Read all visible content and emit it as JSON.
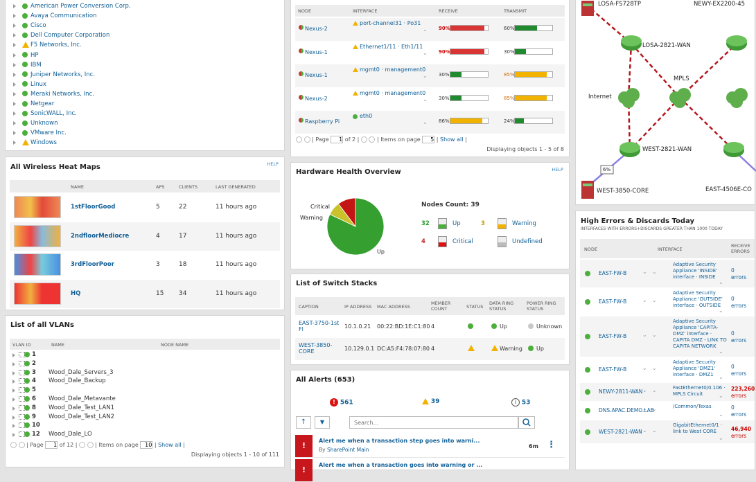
{
  "vendors": {
    "items": [
      {
        "label": "American Power Conversion Corp.",
        "status": "up"
      },
      {
        "label": "Avaya Communication",
        "status": "up"
      },
      {
        "label": "Cisco",
        "status": "up"
      },
      {
        "label": "Dell Computer Corporation",
        "status": "up"
      },
      {
        "label": "F5 Networks, Inc.",
        "status": "warning"
      },
      {
        "label": "HP",
        "status": "up"
      },
      {
        "label": "IBM",
        "status": "up"
      },
      {
        "label": "Juniper Networks, Inc.",
        "status": "up"
      },
      {
        "label": "Linux",
        "status": "up"
      },
      {
        "label": "Meraki Networks, Inc.",
        "status": "up"
      },
      {
        "label": "Netgear",
        "status": "up"
      },
      {
        "label": "SonicWALL, Inc.",
        "status": "up"
      },
      {
        "label": "Unknown",
        "status": "up"
      },
      {
        "label": "VMware Inc.",
        "status": "up"
      },
      {
        "label": "Windows",
        "status": "warning"
      }
    ]
  },
  "heatmaps": {
    "title": "All Wireless Heat Maps",
    "help": "HELP",
    "cols": [
      "NAME",
      "APS",
      "CLIENTS",
      "LAST GENERATED"
    ],
    "rows": [
      {
        "name": "1stFloorGood",
        "aps": "5",
        "clients": "22",
        "last": "11 hours ago"
      },
      {
        "name": "2ndfloorMediocre",
        "aps": "4",
        "clients": "17",
        "last": "11 hours ago"
      },
      {
        "name": "3rdFloorPoor",
        "aps": "3",
        "clients": "18",
        "last": "11 hours ago"
      },
      {
        "name": "HQ",
        "aps": "15",
        "clients": "34",
        "last": "11 hours ago"
      }
    ]
  },
  "vlans": {
    "title": "List of all VLANs",
    "cols": [
      "VLAN ID",
      "NAME",
      "NODE NAME"
    ],
    "rows": [
      {
        "id": "1",
        "name": ""
      },
      {
        "id": "2",
        "name": ""
      },
      {
        "id": "3",
        "name": "Wood_Dale_Servers_3"
      },
      {
        "id": "4",
        "name": "Wood_Dale_Backup"
      },
      {
        "id": "5",
        "name": ""
      },
      {
        "id": "6",
        "name": "Wood_Dale_Metavante"
      },
      {
        "id": "8",
        "name": "Wood_Dale_Test_LAN1"
      },
      {
        "id": "9",
        "name": "Wood_Dale_Test_LAN2"
      },
      {
        "id": "10",
        "name": ""
      },
      {
        "id": "12",
        "name": "Wood_Dale_LO"
      }
    ],
    "pager": {
      "page_label": "Page",
      "page": "1",
      "of": "of 12",
      "items_label": "Items on page",
      "items": "10",
      "show_all": "Show all",
      "displaying": "Displaying objects 1 - 10 of 111"
    }
  },
  "interfaces": {
    "cols": [
      "NODE",
      "INTERFACE",
      "RECEIVE",
      "TRANSMIT"
    ],
    "rows": [
      {
        "node": "Nexus-2",
        "iface": "port-channel31 · Po31",
        "iface_warn": true,
        "rx": "90%",
        "rx_pct": 90,
        "rx_color": "#d93535",
        "tx": "60%",
        "tx_pct": 60,
        "tx_color": "#1f8a2e"
      },
      {
        "node": "Nexus-1",
        "iface": "Ethernet1/11 · Eth1/11",
        "iface_warn": true,
        "rx": "90%",
        "rx_pct": 90,
        "rx_color": "#d93535",
        "tx": "30%",
        "tx_pct": 30,
        "tx_color": "#1f8a2e"
      },
      {
        "node": "Nexus-1",
        "iface": "mgmt0 · management0",
        "iface_warn": true,
        "rx": "30%",
        "rx_pct": 30,
        "rx_color": "#1f8a2e",
        "tx": "85%",
        "tx_pct": 85,
        "tx_color": "#f2b200"
      },
      {
        "node": "Nexus-2",
        "iface": "mgmt0 · management0",
        "iface_warn": true,
        "rx": "30%",
        "rx_pct": 30,
        "rx_color": "#1f8a2e",
        "tx": "85%",
        "tx_pct": 85,
        "tx_color": "#f2b200"
      },
      {
        "node": "Raspberry Pi",
        "iface": "eth0",
        "iface_warn": false,
        "rx": "86%",
        "rx_pct": 86,
        "rx_color": "#f2b200",
        "tx": "24%",
        "tx_pct": 24,
        "tx_color": "#1f8a2e"
      }
    ],
    "pager": {
      "page_label": "Page",
      "page": "1",
      "of": "of 2",
      "items_label": "Items on page",
      "items": "5",
      "show_all": "Show all",
      "displaying": "Displaying objects 1 - 5 of 8"
    }
  },
  "hardware": {
    "title": "Hardware Health Overview",
    "help": "HELP",
    "nodes_count": "Nodes Count: 39",
    "pie_labels": {
      "critical": "Critical",
      "warning": "Warning",
      "up": "Up"
    },
    "legend": [
      {
        "count": "32",
        "label": "Up",
        "color": "#2e9b2e"
      },
      {
        "count": "3",
        "label": "Warning",
        "color": "#c99a00"
      },
      {
        "count": "4",
        "label": "Critical",
        "color": "#c62828"
      },
      {
        "count": "",
        "label": "Undefined",
        "color": "#999"
      }
    ],
    "chart_data": {
      "type": "pie",
      "labels": [
        "Up",
        "Warning",
        "Critical",
        "Undefined"
      ],
      "values": [
        32,
        3,
        4,
        0
      ],
      "colors": [
        "#35a02f",
        "#c9c22a",
        "#c41515",
        "#c8c8c8"
      ]
    }
  },
  "stacks": {
    "title": "List of Switch Stacks",
    "cols": [
      "CAPTION",
      "IP ADDRESS",
      "MAC ADDRESS",
      "MEMBER COUNT",
      "STATUS",
      "DATA RING STATUS",
      "POWER RING STATUS"
    ],
    "rows": [
      {
        "caption": "EAST-3750-1st Fl",
        "ip": "10.1.0.21",
        "mac": "00:22:BD:1E:C1:80",
        "count": "4",
        "status": "up",
        "data": "Up",
        "data_s": "up",
        "power": "Unknown",
        "power_s": "unknown"
      },
      {
        "caption": "WEST-3850-CORE",
        "ip": "10.129.0.1",
        "mac": "DC:A5:F4:78:07:80",
        "count": "4",
        "status": "warning",
        "data": "Warning",
        "data_s": "warning",
        "power": "Up",
        "power_s": "up"
      }
    ]
  },
  "alerts": {
    "title": "All Alerts (653)",
    "critical": "561",
    "warning": "39",
    "info": "53",
    "search_placeholder": "Search...",
    "items": [
      {
        "title": "Alert me when a transaction step goes into warni...",
        "by": "By",
        "source": "SharePoint Main",
        "age": "6m"
      },
      {
        "title": "Alert me when a transaction goes into warning or ...",
        "by": "",
        "source": "",
        "age": ""
      }
    ]
  },
  "map": {
    "nodes": [
      "LOSA-FS728TP",
      "NEWY-EX2200-45",
      "LOSA-2821-WAN",
      "MPLS",
      "Internet",
      "WEST-2821-WAN",
      "WEST-3850-CORE",
      "EAST-4506E-CO"
    ],
    "link_label": "6%"
  },
  "errors": {
    "title": "High Errors & Discards Today",
    "subtitle": "INTERFACES WITH ERRORS+DISCARDS GREATER THAN 1000 TODAY",
    "cols": [
      "NODE",
      "INTERFACE",
      "RECEIVE ERRORS"
    ],
    "rows": [
      {
        "node": "EAST-FW-B",
        "iface": "Adaptive Security Appliance 'INSIDE' interface · INSIDE",
        "val": "0",
        "unit": "errors",
        "red": false
      },
      {
        "node": "EAST-FW-B",
        "iface": "Adaptive Security Appliance 'OUTSIDE' interface · OUTSIDE",
        "val": "0",
        "unit": "errors",
        "red": false
      },
      {
        "node": "EAST-FW-B",
        "iface": "Adaptive Security Appliance 'CAPITA-DMZ' interface · CAPITA DMZ - LINK TO CAPITA NETWORK",
        "val": "0",
        "unit": "errors",
        "red": false
      },
      {
        "node": "EAST-FW-B",
        "iface": "Adaptive Security Appliance 'DMZ1' interface · DMZ1",
        "val": "0",
        "unit": "errors",
        "red": false
      },
      {
        "node": "NEWY-2811-WAN",
        "iface": "FastEthernet0/0.106 · MPLS Circuit",
        "val": "223,260",
        "unit": "errors",
        "red": true
      },
      {
        "node": "DNS.APAC.DEMO.LAB",
        "iface": "/Common/Texas",
        "val": "0",
        "unit": "errors",
        "red": false
      },
      {
        "node": "WEST-2821-WAN",
        "iface": "GigabitEthernet0/1 · link to West CORE",
        "val": "46,940",
        "unit": "errors",
        "red": true
      }
    ]
  }
}
